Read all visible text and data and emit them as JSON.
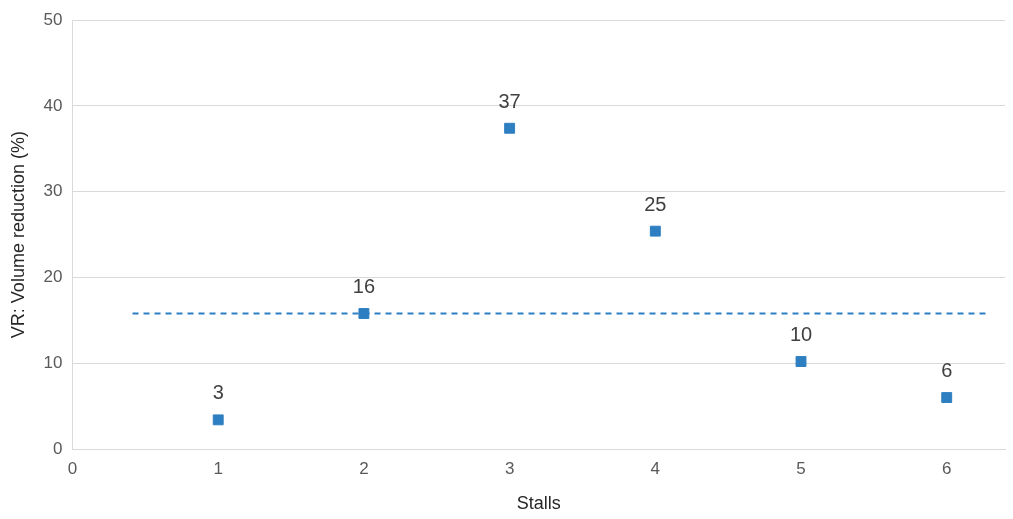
{
  "chart_data": {
    "type": "scatter",
    "xlabel": "Stalls",
    "ylabel": "VR: Volume reduction (%)",
    "x": [
      1,
      2,
      3,
      4,
      5,
      6
    ],
    "series": [
      {
        "color": "#2e7fc1",
        "values": [
          3.4,
          15.8,
          37.4,
          25.4,
          10.2,
          6.0
        ],
        "value_labels": [
          "3",
          "16",
          "37",
          "25",
          "10",
          "6"
        ]
      }
    ],
    "xlim": [
      0,
      6.4
    ],
    "xticks": [
      0,
      1,
      2,
      3,
      4,
      5,
      6
    ],
    "ylim": [
      0,
      50
    ],
    "yticks": [
      0,
      10,
      20,
      30,
      40,
      50
    ],
    "ref_lines": [
      {
        "axis": "y",
        "value": 15.8,
        "color": "#2e7fc1",
        "line_style": "dashed"
      }
    ],
    "grid": "y",
    "legend": false,
    "marker": "square"
  }
}
